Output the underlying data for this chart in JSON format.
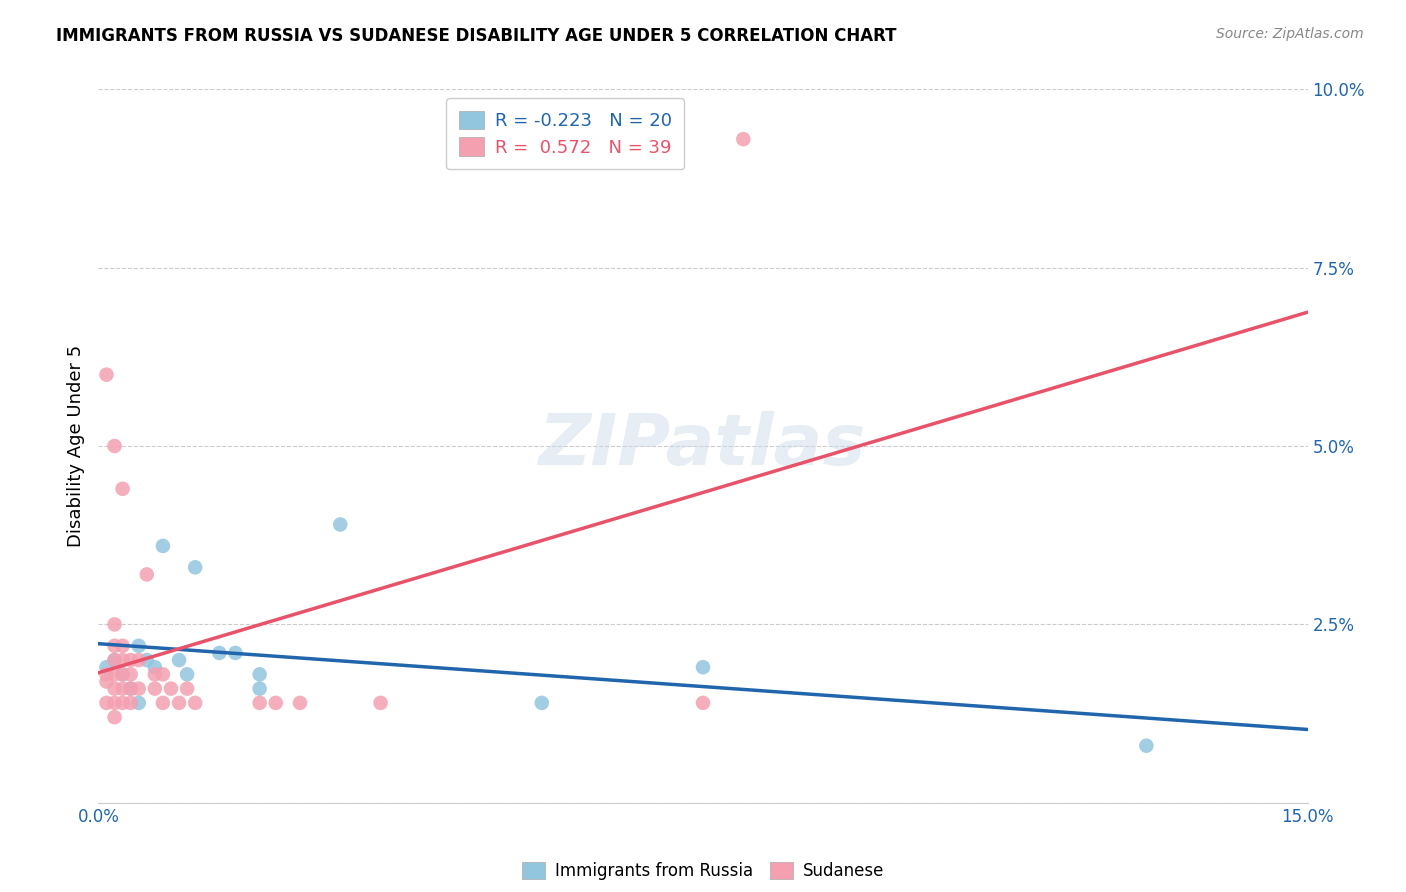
{
  "title": "IMMIGRANTS FROM RUSSIA VS SUDANESE DISABILITY AGE UNDER 5 CORRELATION CHART",
  "source": "Source: ZipAtlas.com",
  "ylabel": "Disability Age Under 5",
  "xlim": [
    0,
    0.15
  ],
  "ylim": [
    0,
    0.1
  ],
  "xticks": [
    0.0,
    0.025,
    0.05,
    0.075,
    0.1,
    0.125,
    0.15
  ],
  "xticklabels": [
    "0.0%",
    "",
    "",
    "",
    "",
    "",
    "15.0%"
  ],
  "yticks_right": [
    0.0,
    0.025,
    0.05,
    0.075,
    0.1
  ],
  "yticklabels_right": [
    "",
    "2.5%",
    "5.0%",
    "7.5%",
    "10.0%"
  ],
  "russia_R": -0.223,
  "russia_N": 20,
  "sudanese_R": 0.572,
  "sudanese_N": 39,
  "russia_color": "#92C5DE",
  "sudanese_color": "#F4A0B0",
  "russia_line_color": "#2166AC",
  "sudanese_line_color": "#E8536A",
  "watermark": "ZIPatlas",
  "russia_points": [
    [
      0.001,
      0.019
    ],
    [
      0.002,
      0.02
    ],
    [
      0.003,
      0.018
    ],
    [
      0.004,
      0.016
    ],
    [
      0.005,
      0.022
    ],
    [
      0.005,
      0.014
    ],
    [
      0.006,
      0.02
    ],
    [
      0.007,
      0.019
    ],
    [
      0.008,
      0.036
    ],
    [
      0.01,
      0.02
    ],
    [
      0.011,
      0.018
    ],
    [
      0.012,
      0.033
    ],
    [
      0.015,
      0.021
    ],
    [
      0.017,
      0.021
    ],
    [
      0.02,
      0.018
    ],
    [
      0.02,
      0.016
    ],
    [
      0.03,
      0.039
    ],
    [
      0.055,
      0.014
    ],
    [
      0.075,
      0.019
    ],
    [
      0.13,
      0.008
    ]
  ],
  "sudanese_points": [
    [
      0.001,
      0.06
    ],
    [
      0.001,
      0.018
    ],
    [
      0.001,
      0.017
    ],
    [
      0.001,
      0.014
    ],
    [
      0.002,
      0.05
    ],
    [
      0.002,
      0.025
    ],
    [
      0.002,
      0.022
    ],
    [
      0.002,
      0.02
    ],
    [
      0.002,
      0.018
    ],
    [
      0.002,
      0.016
    ],
    [
      0.002,
      0.014
    ],
    [
      0.002,
      0.012
    ],
    [
      0.003,
      0.044
    ],
    [
      0.003,
      0.022
    ],
    [
      0.003,
      0.02
    ],
    [
      0.003,
      0.018
    ],
    [
      0.003,
      0.016
    ],
    [
      0.003,
      0.014
    ],
    [
      0.004,
      0.02
    ],
    [
      0.004,
      0.018
    ],
    [
      0.004,
      0.016
    ],
    [
      0.004,
      0.014
    ],
    [
      0.005,
      0.02
    ],
    [
      0.005,
      0.016
    ],
    [
      0.006,
      0.032
    ],
    [
      0.007,
      0.018
    ],
    [
      0.007,
      0.016
    ],
    [
      0.008,
      0.018
    ],
    [
      0.008,
      0.014
    ],
    [
      0.009,
      0.016
    ],
    [
      0.01,
      0.014
    ],
    [
      0.011,
      0.016
    ],
    [
      0.012,
      0.014
    ],
    [
      0.02,
      0.014
    ],
    [
      0.022,
      0.014
    ],
    [
      0.025,
      0.014
    ],
    [
      0.035,
      0.014
    ],
    [
      0.075,
      0.014
    ],
    [
      0.08,
      0.093
    ]
  ],
  "legend_Russia_label": "Immigrants from Russia",
  "legend_Sudanese_label": "Sudanese"
}
